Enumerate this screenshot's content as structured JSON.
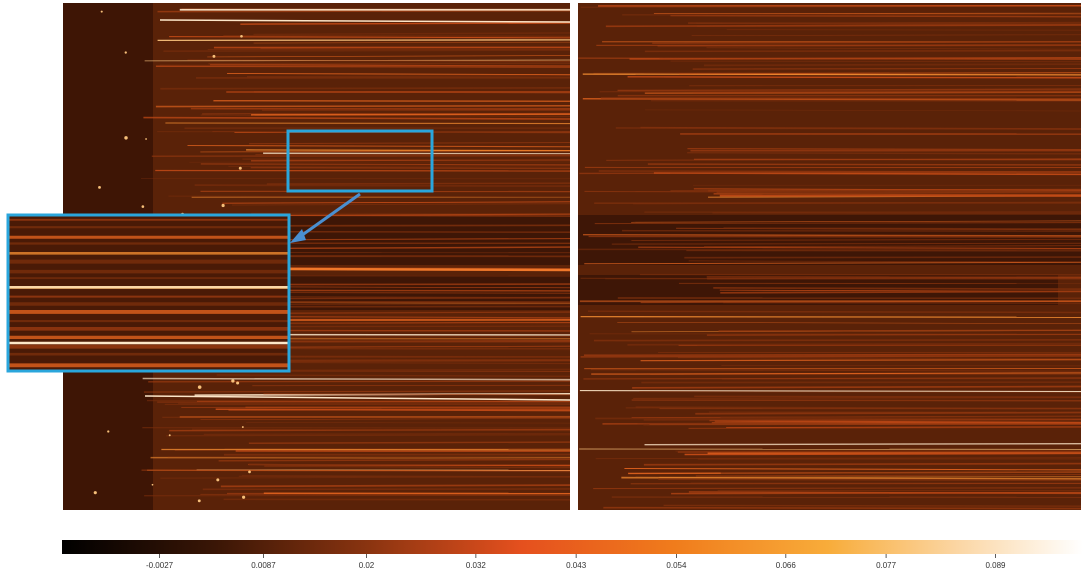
{
  "colorbar": {
    "lim": [
      -0.0134,
      0.0986
    ],
    "ticks": [
      -0.0027,
      0.0087,
      0.02,
      0.032,
      0.043,
      0.054,
      0.066,
      0.077,
      0.089
    ]
  }
}
